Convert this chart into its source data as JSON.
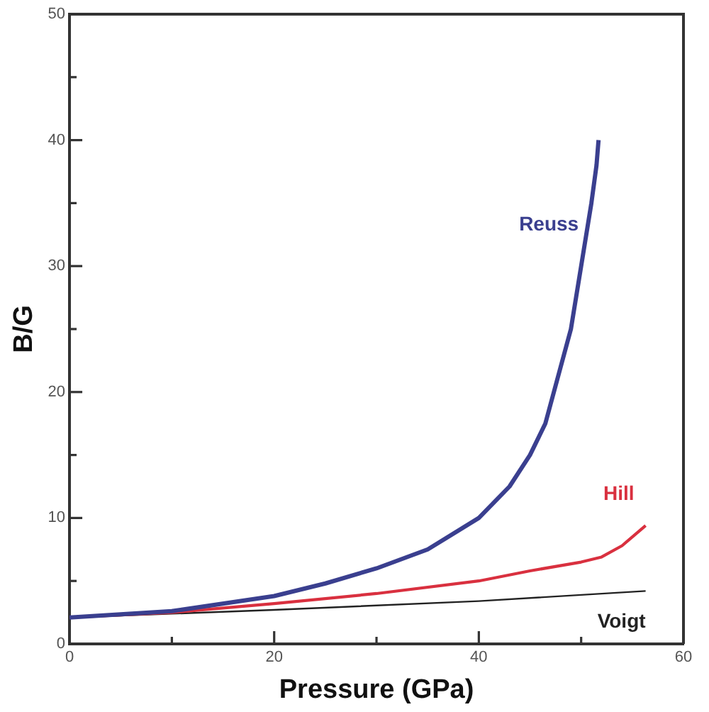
{
  "chart_data": {
    "type": "line",
    "xlabel": "Pressure (GPa)",
    "ylabel": "B/G",
    "xlim": [
      0,
      60
    ],
    "xticks": [
      0,
      {
        "value": 10,
        "label": null
      },
      20,
      {
        "value": 30,
        "label": null
      },
      40,
      {
        "value": 50,
        "label": null
      },
      60
    ],
    "ylim": [
      0,
      50
    ],
    "yticks": [
      0,
      {
        "value": 5,
        "label": null
      },
      10,
      {
        "value": 15,
        "label": null
      },
      20,
      {
        "value": 25,
        "label": null
      },
      30,
      {
        "value": 35,
        "label": null
      },
      40,
      {
        "value": 45,
        "label": null
      },
      50
    ],
    "grid": false,
    "legend": false,
    "marker": "none",
    "line_style": "solid",
    "series": [
      {
        "name": "Reuss",
        "color": "#3a3f8f",
        "x": [
          0,
          10,
          20,
          25,
          30,
          35,
          40,
          43,
          45,
          46.5,
          48,
          49,
          50,
          51,
          51.5,
          51.7
        ],
        "values": [
          2.1,
          2.6,
          3.8,
          4.8,
          6,
          7.5,
          10,
          12.5,
          15,
          17.5,
          22,
          25,
          30,
          35,
          38,
          40
        ]
      },
      {
        "name": "Hill",
        "color": "#d9303f",
        "x": [
          0,
          10,
          20,
          30,
          40,
          45,
          50,
          52,
          54,
          56.3
        ],
        "values": [
          2.1,
          2.5,
          3.2,
          4,
          5,
          5.8,
          6.5,
          6.9,
          7.8,
          9.4
        ]
      },
      {
        "name": "Voigt",
        "color": "#222222",
        "x": [
          0,
          20,
          40,
          56.3
        ],
        "values": [
          2.1,
          2.7,
          3.4,
          4.2
        ]
      }
    ]
  }
}
